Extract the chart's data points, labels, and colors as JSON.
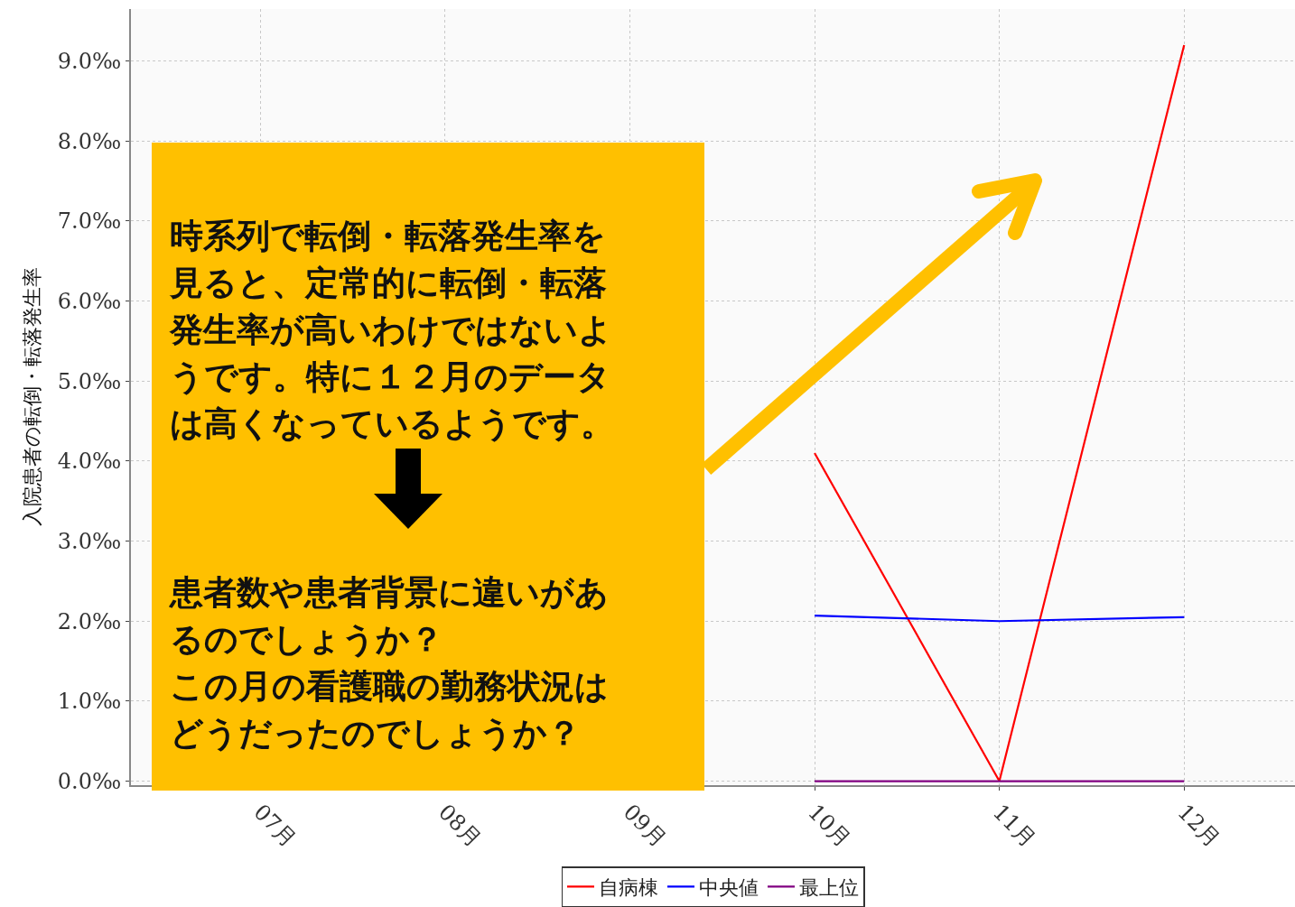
{
  "chart_data": {
    "type": "line",
    "ylabel": "入院患者の転倒・転落発生率",
    "categories": [
      "07月",
      "08月",
      "09月",
      "10月",
      "11月",
      "12月"
    ],
    "series": [
      {
        "name": "自病棟",
        "color": "#ff0000",
        "values": [
          null,
          null,
          null,
          4.1,
          0.0,
          9.2
        ]
      },
      {
        "name": "中央値",
        "color": "#0000ff",
        "values": [
          null,
          null,
          null,
          2.07,
          2.0,
          2.05
        ]
      },
      {
        "name": "最上位",
        "color": "#800080",
        "values": [
          null,
          null,
          null,
          0.0,
          0.0,
          0.0
        ]
      }
    ],
    "ylim": [
      -0.05,
      9.65
    ],
    "yticks": [
      {
        "value": 0,
        "label": "0.0‰"
      },
      {
        "value": 1,
        "label": "1.0‰"
      },
      {
        "value": 2,
        "label": "2.0‰"
      },
      {
        "value": 3,
        "label": "3.0‰"
      },
      {
        "value": 4,
        "label": "4.0‰"
      },
      {
        "value": 5,
        "label": "5.0‰"
      },
      {
        "value": 6,
        "label": "6.0‰"
      },
      {
        "value": 7,
        "label": "7.0‰"
      },
      {
        "value": 8,
        "label": "8.0‰"
      },
      {
        "value": 9,
        "label": "9.0‰"
      }
    ],
    "grid": true,
    "legend": "bottom",
    "marker": "none",
    "line_style": "solid",
    "annotations": [
      "時系列で転倒・転落発生率を見ると、定常的に転倒・転落発生率が高いわけではないようです。特に１２月のデータは高くなっているようです。",
      "患者数や患者背景に違いがあるのでしょうか？",
      "この月の看護職の勤務状況はどうだったのでしょうか？"
    ]
  }
}
